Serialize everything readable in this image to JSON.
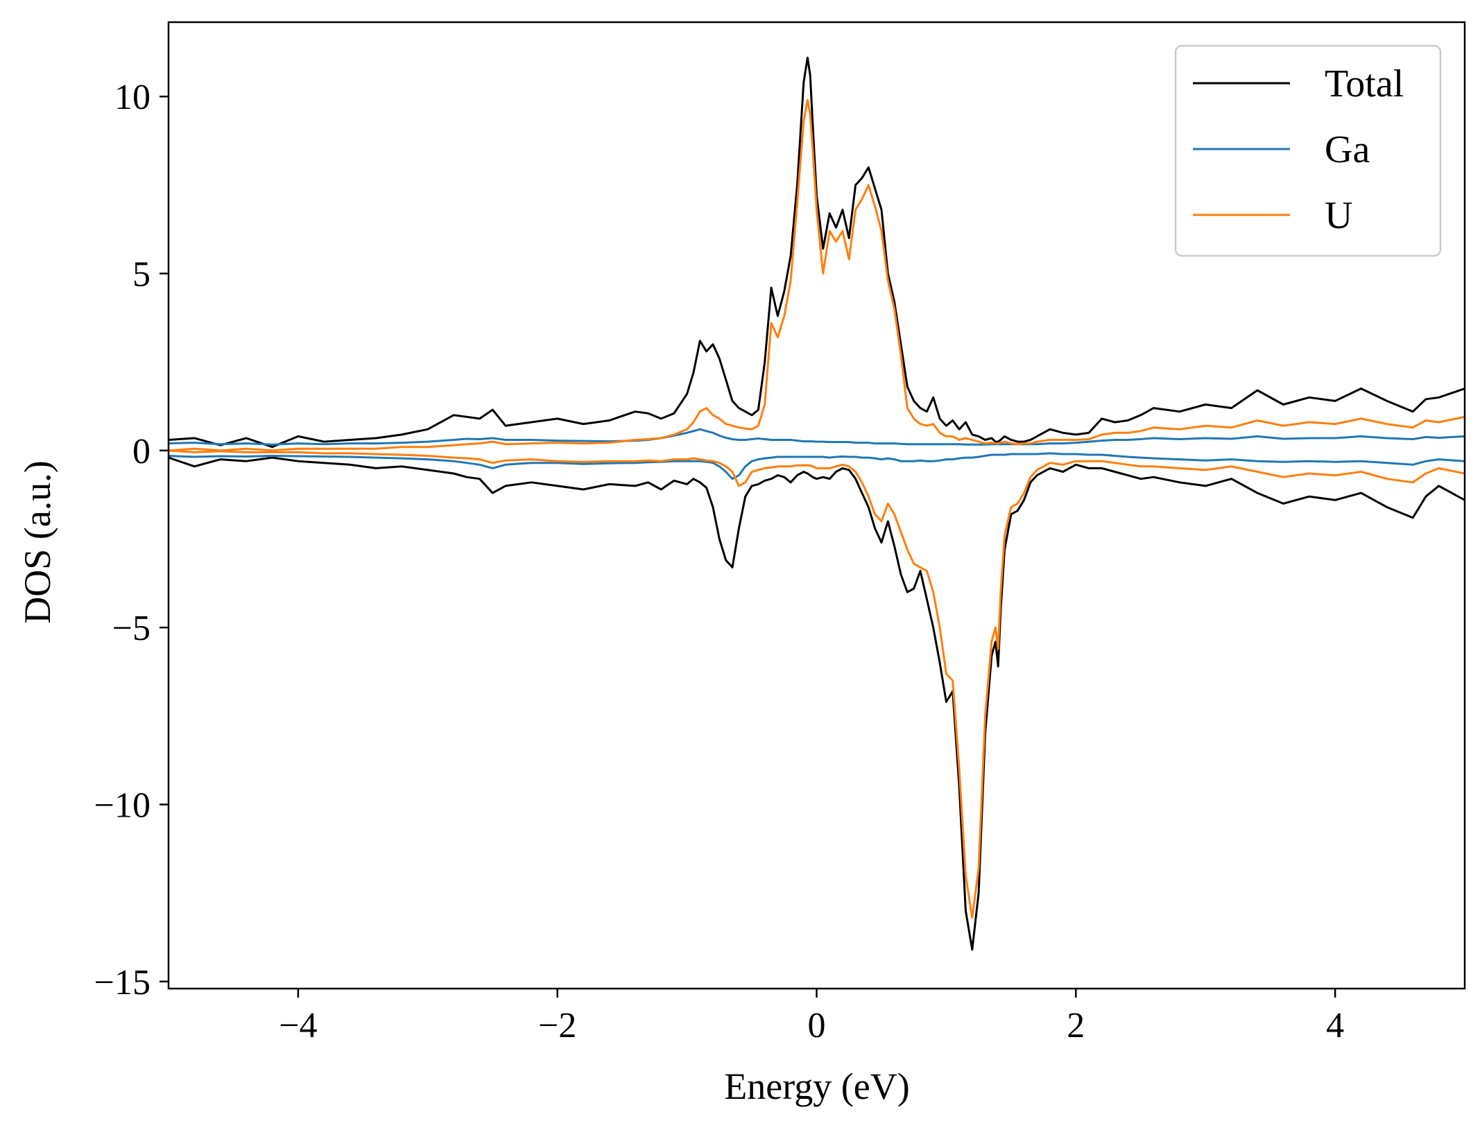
{
  "chart_data": {
    "type": "line",
    "xlabel": "Energy (eV)",
    "ylabel": "DOS (a.u.)",
    "xlim": [
      -5,
      5
    ],
    "ylim": [
      -15.2,
      12.1
    ],
    "xticks": [
      -4,
      -2,
      0,
      2,
      4
    ],
    "xtick_labels": [
      "−4",
      "−2",
      "0",
      "2",
      "4"
    ],
    "yticks": [
      10,
      5,
      0,
      -5,
      -10,
      -15
    ],
    "ytick_labels": [
      "10",
      "5",
      "0",
      "−5",
      "−10",
      "−15"
    ],
    "grid": false,
    "legend_position": "top-right",
    "x": [
      -5.0,
      -4.8,
      -4.6,
      -4.4,
      -4.2,
      -4.0,
      -3.8,
      -3.6,
      -3.4,
      -3.2,
      -3.0,
      -2.8,
      -2.7,
      -2.6,
      -2.5,
      -2.4,
      -2.2,
      -2.0,
      -1.8,
      -1.6,
      -1.4,
      -1.3,
      -1.2,
      -1.1,
      -1.0,
      -0.95,
      -0.9,
      -0.85,
      -0.8,
      -0.75,
      -0.7,
      -0.65,
      -0.6,
      -0.55,
      -0.5,
      -0.45,
      -0.4,
      -0.35,
      -0.3,
      -0.25,
      -0.2,
      -0.15,
      -0.1,
      -0.07,
      -0.05,
      -0.03,
      0.0,
      0.05,
      0.1,
      0.15,
      0.2,
      0.25,
      0.3,
      0.35,
      0.4,
      0.45,
      0.5,
      0.55,
      0.6,
      0.65,
      0.7,
      0.75,
      0.8,
      0.85,
      0.9,
      0.95,
      1.0,
      1.05,
      1.1,
      1.15,
      1.2,
      1.25,
      1.3,
      1.35,
      1.38,
      1.4,
      1.42,
      1.45,
      1.5,
      1.55,
      1.6,
      1.65,
      1.7,
      1.8,
      1.9,
      2.0,
      2.1,
      2.2,
      2.3,
      2.4,
      2.5,
      2.6,
      2.8,
      3.0,
      3.2,
      3.4,
      3.6,
      3.8,
      4.0,
      4.2,
      4.4,
      4.6,
      4.7,
      4.8,
      5.0
    ],
    "series": [
      {
        "name": "Total",
        "color": "#000000",
        "up": [
          0.3,
          0.35,
          0.15,
          0.35,
          0.1,
          0.4,
          0.25,
          0.3,
          0.35,
          0.45,
          0.6,
          1.0,
          0.95,
          0.9,
          1.15,
          0.7,
          0.8,
          0.9,
          0.75,
          0.85,
          1.1,
          1.05,
          0.9,
          1.05,
          1.6,
          2.2,
          3.1,
          2.8,
          3.0,
          2.6,
          2.0,
          1.4,
          1.2,
          1.1,
          1.0,
          1.15,
          2.5,
          4.6,
          3.8,
          4.5,
          5.5,
          7.5,
          10.4,
          11.1,
          10.6,
          9.2,
          7.2,
          5.7,
          6.7,
          6.3,
          6.8,
          6.0,
          7.5,
          7.7,
          8.0,
          7.4,
          6.8,
          5.0,
          4.2,
          3.0,
          1.8,
          1.4,
          1.2,
          1.1,
          1.5,
          0.9,
          0.7,
          0.85,
          0.6,
          0.8,
          0.45,
          0.4,
          0.3,
          0.35,
          0.25,
          0.25,
          0.3,
          0.4,
          0.3,
          0.25,
          0.25,
          0.3,
          0.4,
          0.6,
          0.5,
          0.45,
          0.5,
          0.9,
          0.8,
          0.85,
          1.0,
          1.2,
          1.1,
          1.3,
          1.2,
          1.7,
          1.3,
          1.5,
          1.4,
          1.75,
          1.4,
          1.1,
          1.45,
          1.5,
          1.75
        ],
        "down": [
          -0.2,
          -0.45,
          -0.25,
          -0.3,
          -0.2,
          -0.3,
          -0.35,
          -0.4,
          -0.5,
          -0.45,
          -0.55,
          -0.65,
          -0.75,
          -0.8,
          -1.2,
          -1.0,
          -0.9,
          -1.0,
          -1.1,
          -0.95,
          -1.0,
          -0.9,
          -1.1,
          -0.85,
          -0.95,
          -0.8,
          -0.9,
          -1.05,
          -1.6,
          -2.5,
          -3.1,
          -3.3,
          -2.2,
          -1.3,
          -1.0,
          -0.95,
          -0.85,
          -0.8,
          -0.7,
          -0.75,
          -0.9,
          -0.7,
          -0.6,
          -0.65,
          -0.7,
          -0.75,
          -0.8,
          -0.75,
          -0.8,
          -0.6,
          -0.5,
          -0.55,
          -0.8,
          -1.2,
          -1.6,
          -2.2,
          -2.6,
          -2.0,
          -2.7,
          -3.5,
          -4.0,
          -3.9,
          -3.4,
          -4.2,
          -5.0,
          -6.0,
          -7.1,
          -6.8,
          -9.5,
          -13.0,
          -14.1,
          -12.5,
          -8.0,
          -5.8,
          -5.4,
          -6.1,
          -4.5,
          -2.8,
          -1.8,
          -1.7,
          -1.4,
          -0.9,
          -0.7,
          -0.5,
          -0.6,
          -0.4,
          -0.5,
          -0.5,
          -0.6,
          -0.7,
          -0.8,
          -0.75,
          -0.9,
          -1.0,
          -0.8,
          -1.2,
          -1.5,
          -1.3,
          -1.4,
          -1.2,
          -1.6,
          -1.9,
          -1.3,
          -1.0,
          -1.4
        ]
      },
      {
        "name": "Ga",
        "color": "#1f77b4",
        "up": [
          0.2,
          0.22,
          0.18,
          0.2,
          0.17,
          0.2,
          0.18,
          0.2,
          0.2,
          0.22,
          0.25,
          0.3,
          0.33,
          0.32,
          0.35,
          0.3,
          0.3,
          0.28,
          0.27,
          0.26,
          0.28,
          0.3,
          0.35,
          0.42,
          0.5,
          0.55,
          0.6,
          0.55,
          0.5,
          0.42,
          0.36,
          0.32,
          0.3,
          0.3,
          0.32,
          0.34,
          0.32,
          0.3,
          0.3,
          0.3,
          0.3,
          0.28,
          0.26,
          0.26,
          0.26,
          0.26,
          0.25,
          0.25,
          0.24,
          0.24,
          0.24,
          0.24,
          0.22,
          0.22,
          0.22,
          0.2,
          0.2,
          0.2,
          0.2,
          0.19,
          0.18,
          0.18,
          0.18,
          0.18,
          0.18,
          0.18,
          0.18,
          0.18,
          0.18,
          0.17,
          0.17,
          0.17,
          0.17,
          0.18,
          0.18,
          0.18,
          0.18,
          0.18,
          0.18,
          0.18,
          0.18,
          0.18,
          0.18,
          0.2,
          0.2,
          0.22,
          0.25,
          0.28,
          0.3,
          0.3,
          0.32,
          0.35,
          0.32,
          0.35,
          0.33,
          0.4,
          0.33,
          0.35,
          0.35,
          0.4,
          0.35,
          0.32,
          0.38,
          0.36,
          0.4
        ],
        "down": [
          -0.15,
          -0.18,
          -0.16,
          -0.17,
          -0.15,
          -0.16,
          -0.17,
          -0.18,
          -0.2,
          -0.22,
          -0.25,
          -0.3,
          -0.35,
          -0.4,
          -0.5,
          -0.4,
          -0.35,
          -0.35,
          -0.38,
          -0.36,
          -0.35,
          -0.33,
          -0.32,
          -0.3,
          -0.3,
          -0.3,
          -0.3,
          -0.32,
          -0.35,
          -0.45,
          -0.6,
          -0.8,
          -0.7,
          -0.45,
          -0.3,
          -0.25,
          -0.22,
          -0.2,
          -0.18,
          -0.18,
          -0.18,
          -0.18,
          -0.18,
          -0.18,
          -0.18,
          -0.18,
          -0.18,
          -0.18,
          -0.2,
          -0.18,
          -0.17,
          -0.18,
          -0.18,
          -0.2,
          -0.2,
          -0.22,
          -0.25,
          -0.22,
          -0.25,
          -0.3,
          -0.3,
          -0.3,
          -0.28,
          -0.3,
          -0.3,
          -0.28,
          -0.25,
          -0.25,
          -0.22,
          -0.2,
          -0.2,
          -0.18,
          -0.15,
          -0.12,
          -0.12,
          -0.12,
          -0.12,
          -0.12,
          -0.1,
          -0.1,
          -0.1,
          -0.1,
          -0.1,
          -0.08,
          -0.1,
          -0.1,
          -0.12,
          -0.12,
          -0.15,
          -0.18,
          -0.2,
          -0.22,
          -0.25,
          -0.28,
          -0.25,
          -0.3,
          -0.32,
          -0.3,
          -0.32,
          -0.3,
          -0.35,
          -0.4,
          -0.3,
          -0.25,
          -0.3
        ]
      },
      {
        "name": "U",
        "color": "#ff7f0e",
        "up": [
          0.0,
          0.05,
          0.0,
          0.05,
          0.0,
          0.05,
          0.05,
          0.05,
          0.05,
          0.1,
          0.1,
          0.15,
          0.18,
          0.2,
          0.25,
          0.18,
          0.2,
          0.22,
          0.2,
          0.22,
          0.3,
          0.32,
          0.35,
          0.45,
          0.6,
          0.8,
          1.1,
          1.2,
          1.0,
          0.9,
          0.75,
          0.7,
          0.65,
          0.62,
          0.6,
          0.7,
          1.3,
          3.6,
          3.2,
          3.8,
          4.8,
          7.0,
          9.3,
          9.9,
          9.5,
          8.5,
          6.8,
          5.0,
          6.2,
          5.9,
          6.2,
          5.4,
          6.8,
          7.1,
          7.5,
          6.9,
          6.2,
          4.8,
          4.0,
          2.7,
          1.2,
          0.9,
          0.75,
          0.7,
          0.75,
          0.5,
          0.4,
          0.4,
          0.3,
          0.35,
          0.3,
          0.25,
          0.2,
          0.22,
          0.2,
          0.2,
          0.22,
          0.25,
          0.2,
          0.18,
          0.2,
          0.2,
          0.25,
          0.3,
          0.3,
          0.3,
          0.32,
          0.45,
          0.5,
          0.5,
          0.55,
          0.65,
          0.6,
          0.7,
          0.65,
          0.85,
          0.7,
          0.8,
          0.75,
          0.9,
          0.75,
          0.65,
          0.85,
          0.8,
          0.95
        ],
        "down": [
          0.0,
          -0.05,
          -0.02,
          -0.05,
          -0.05,
          -0.05,
          -0.08,
          -0.08,
          -0.1,
          -0.12,
          -0.15,
          -0.2,
          -0.22,
          -0.25,
          -0.35,
          -0.28,
          -0.25,
          -0.3,
          -0.32,
          -0.3,
          -0.3,
          -0.28,
          -0.3,
          -0.25,
          -0.25,
          -0.22,
          -0.25,
          -0.28,
          -0.3,
          -0.35,
          -0.45,
          -0.6,
          -1.0,
          -0.9,
          -0.6,
          -0.55,
          -0.5,
          -0.48,
          -0.45,
          -0.45,
          -0.45,
          -0.42,
          -0.42,
          -0.42,
          -0.42,
          -0.45,
          -0.5,
          -0.5,
          -0.5,
          -0.45,
          -0.4,
          -0.45,
          -0.6,
          -0.9,
          -1.3,
          -1.8,
          -2.0,
          -1.5,
          -1.8,
          -2.3,
          -2.8,
          -3.2,
          -3.3,
          -3.4,
          -4.0,
          -5.0,
          -6.3,
          -6.5,
          -9.0,
          -12.0,
          -13.2,
          -11.8,
          -7.5,
          -5.4,
          -5.0,
          -5.6,
          -4.0,
          -2.4,
          -1.6,
          -1.5,
          -1.2,
          -0.75,
          -0.55,
          -0.35,
          -0.4,
          -0.3,
          -0.3,
          -0.3,
          -0.35,
          -0.4,
          -0.45,
          -0.45,
          -0.5,
          -0.55,
          -0.45,
          -0.6,
          -0.75,
          -0.65,
          -0.7,
          -0.6,
          -0.8,
          -0.9,
          -0.65,
          -0.5,
          -0.65
        ]
      }
    ]
  }
}
